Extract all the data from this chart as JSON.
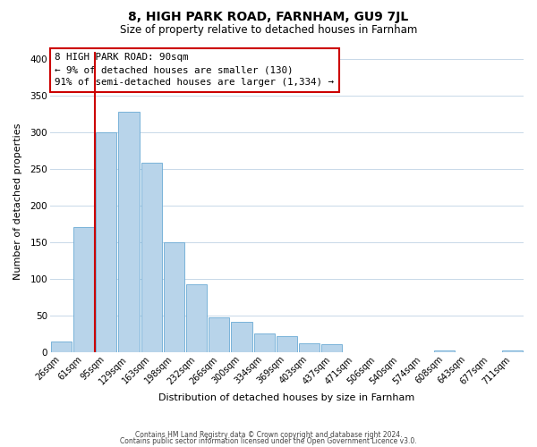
{
  "title": "8, HIGH PARK ROAD, FARNHAM, GU9 7JL",
  "subtitle": "Size of property relative to detached houses in Farnham",
  "xlabel": "Distribution of detached houses by size in Farnham",
  "ylabel": "Number of detached properties",
  "bar_labels": [
    "26sqm",
    "61sqm",
    "95sqm",
    "129sqm",
    "163sqm",
    "198sqm",
    "232sqm",
    "266sqm",
    "300sqm",
    "334sqm",
    "369sqm",
    "403sqm",
    "437sqm",
    "471sqm",
    "506sqm",
    "540sqm",
    "574sqm",
    "608sqm",
    "643sqm",
    "677sqm",
    "711sqm"
  ],
  "bar_values": [
    14,
    170,
    300,
    328,
    258,
    150,
    93,
    48,
    42,
    26,
    22,
    12,
    11,
    0,
    0,
    0,
    0,
    2,
    0,
    0,
    2
  ],
  "bar_color": "#b8d4ea",
  "bar_edge_color": "#6aaad4",
  "vline_color": "#cc0000",
  "annotation_title": "8 HIGH PARK ROAD: 90sqm",
  "annotation_line1": "← 9% of detached houses are smaller (130)",
  "annotation_line2": "91% of semi-detached houses are larger (1,334) →",
  "annotation_box_color": "#ffffff",
  "annotation_box_edge": "#cc0000",
  "ylim": [
    0,
    410
  ],
  "yticks": [
    0,
    50,
    100,
    150,
    200,
    250,
    300,
    350,
    400
  ],
  "footer1": "Contains HM Land Registry data © Crown copyright and database right 2024.",
  "footer2": "Contains public sector information licensed under the Open Government Licence v3.0.",
  "bg_color": "#ffffff",
  "grid_color": "#c8d8e8",
  "title_fontsize": 10,
  "subtitle_fontsize": 8.5,
  "xlabel_fontsize": 8,
  "ylabel_fontsize": 8,
  "tick_fontsize": 7,
  "annotation_fontsize": 7.8,
  "footer_fontsize": 5.5
}
